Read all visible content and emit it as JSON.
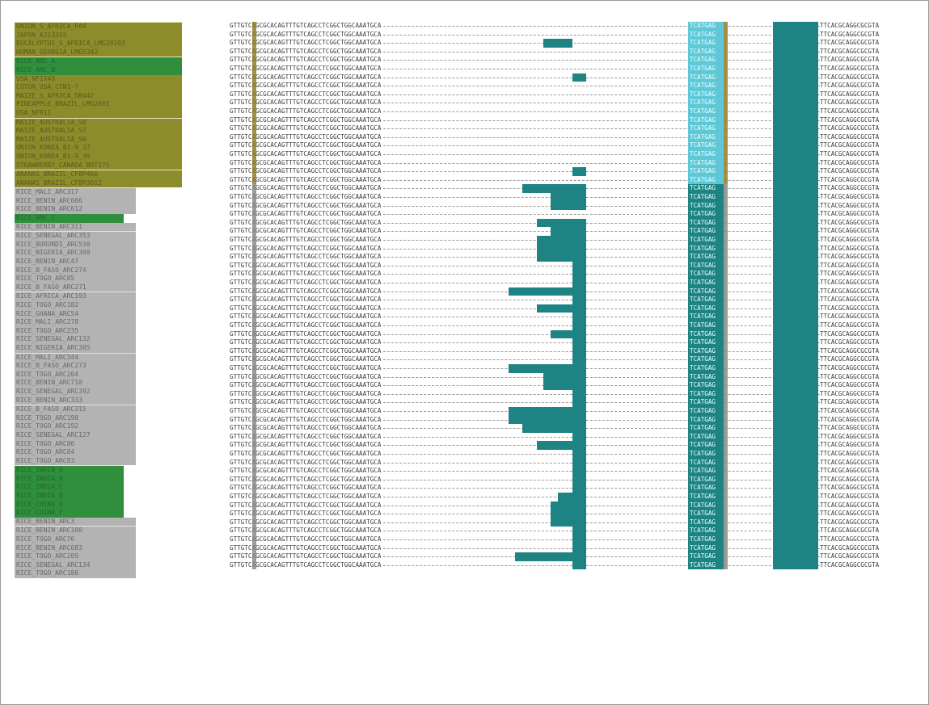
{
  "colors": {
    "olive": "#8d8c2a",
    "olive_dark": "#7a7820",
    "gray": "#b3b3b3",
    "green": "#2f8f3c",
    "teal": "#1d8383",
    "teal_light": "#5fc8d6",
    "mark_gold": "#8f7d2a"
  },
  "left_seq": "GTTGTCAGCGCACAGTTTGTCAGCCTCGGCTGGCAAATGCA",
  "right_seq": "TTCACGCAGGCGCGTA",
  "repeat_unit": "TCATGAG",
  "sequences": [
    {
      "name": "ONION_S_AFRICA_PA4",
      "bg": "olive",
      "start": true
    },
    {
      "name": "JAPON_AJ13355",
      "bg": "olive"
    },
    {
      "name": "EUCALYPTUS_S_AFRICA_LMG20103",
      "bg": "olive",
      "ins": [
        12,
        15
      ]
    },
    {
      "name": "HUMAN_GEORGIA_LMG5342",
      "bg": "olive"
    },
    {
      "name": "RICE_ARC_A",
      "bg": "green",
      "start": true
    },
    {
      "name": "RICE_ARC_B",
      "bg": "green"
    },
    {
      "name": "USA_NFIX48",
      "bg": "olive",
      "ins": [
        16,
        17
      ]
    },
    {
      "name": "COTON_USA_CFN1-7",
      "bg": "olive"
    },
    {
      "name": "MAIZE_S_AFRICA_DB442",
      "bg": "olive"
    },
    {
      "name": "PINEAPPLE_BRAZIL_LMG2665",
      "bg": "olive"
    },
    {
      "name": "USA_NFR11",
      "bg": "olive"
    },
    {
      "name": "MAIZE_AUSTRALIA_S8",
      "bg": "olive",
      "start": true
    },
    {
      "name": "MAIZE_AUSTRALIA_S7",
      "bg": "olive"
    },
    {
      "name": "MAIZE_AUSTRALIA_S6",
      "bg": "olive"
    },
    {
      "name": "ONION_KOREA_B1-9_37",
      "bg": "olive"
    },
    {
      "name": "ONION_KOREA_B1-9_39",
      "bg": "olive"
    },
    {
      "name": "STRAWBERRY_CANADA_BRT175",
      "bg": "olive"
    },
    {
      "name": "ANANAS_BRAZIL_CFBP466",
      "bg": "olive",
      "start": true,
      "ins": [
        16,
        17
      ]
    },
    {
      "name": "ANANAS_BRAZIL_CFBP3612",
      "bg": "olive"
    },
    {
      "name": "RICE_MALI_ARC317",
      "bg": "gray",
      "start": true,
      "ins": [
        9,
        17
      ]
    },
    {
      "name": "RICE_BENIN_ARC666",
      "bg": "gray",
      "ins": [
        13,
        17
      ]
    },
    {
      "name": "RICE_BENIN_ARC612",
      "bg": "gray",
      "ins": [
        13,
        17
      ]
    },
    {
      "name": "RICE_ARC_C",
      "bg": "green"
    },
    {
      "name": "RICE_BENIN_ARC311",
      "bg": "gray",
      "ins": [
        11,
        17
      ]
    },
    {
      "name": "RICE_SENEGAL_ARC353",
      "bg": "gray",
      "start": true,
      "ins": [
        13,
        17
      ]
    },
    {
      "name": "RICE_BURUNDI_ARC538",
      "bg": "gray",
      "ins": [
        11,
        17
      ]
    },
    {
      "name": "RICE_NIGERIA_ARC308",
      "bg": "gray",
      "ins": [
        11,
        17
      ]
    },
    {
      "name": "RICE_BENIN_ARC47",
      "bg": "gray",
      "ins": [
        11,
        17
      ]
    },
    {
      "name": "RICE_B_FASO_ARC274",
      "bg": "gray",
      "ins": [
        16,
        17
      ]
    },
    {
      "name": "RICE_TOGO_ARC85",
      "bg": "gray",
      "ins": [
        16,
        17
      ]
    },
    {
      "name": "RICE_B_FASO_ARC271",
      "bg": "gray",
      "ins": [
        16,
        17
      ]
    },
    {
      "name": "RICE_AFRICA_ARC193",
      "bg": "gray",
      "start": true,
      "ins": [
        7,
        17
      ]
    },
    {
      "name": "RICE_TOGO_ARC182",
      "bg": "gray",
      "ins": [
        16,
        17
      ]
    },
    {
      "name": "RICE_GHANA_ARC54",
      "bg": "gray",
      "ins": [
        11,
        17
      ]
    },
    {
      "name": "RICE_MALI_ARC278",
      "bg": "gray",
      "ins": [
        16,
        17
      ]
    },
    {
      "name": "RICE_TOGO_ARC235",
      "bg": "gray",
      "ins": [
        16,
        17
      ]
    },
    {
      "name": "RICE_SENEGAL_ARC132",
      "bg": "gray",
      "ins": [
        13,
        17
      ]
    },
    {
      "name": "RICE_NIGERIA_ARC305",
      "bg": "gray",
      "ins": [
        16,
        17
      ]
    },
    {
      "name": "RICE_MALI_ARC344",
      "bg": "gray",
      "start": true,
      "ins": [
        16,
        17
      ]
    },
    {
      "name": "RICE_B_FASO_ARC273",
      "bg": "gray",
      "ins": [
        16,
        17
      ]
    },
    {
      "name": "RICE_TOGO_ARC204",
      "bg": "gray",
      "ins": [
        7,
        17
      ]
    },
    {
      "name": "RICE_BENIN_ARC710",
      "bg": "gray",
      "ins": [
        12,
        17
      ]
    },
    {
      "name": "RICE_SENEGAL_ARC392",
      "bg": "gray",
      "ins": [
        12,
        17
      ]
    },
    {
      "name": "RICE_BENIN_ARC333",
      "bg": "gray",
      "ins": [
        16,
        17
      ]
    },
    {
      "name": "RICE_B_FASO_ARC315",
      "bg": "gray",
      "start": true,
      "ins": [
        16,
        17
      ]
    },
    {
      "name": "RICE_TOGO_ARC198",
      "bg": "gray",
      "ins": [
        7,
        17
      ]
    },
    {
      "name": "RICE_TOGO_ARC192",
      "bg": "gray",
      "ins": [
        7,
        17
      ]
    },
    {
      "name": "RICE_SENEGAL_ARC127",
      "bg": "gray",
      "ins": [
        9,
        17
      ]
    },
    {
      "name": "RICE_TOGO_ARC86",
      "bg": "gray",
      "ins": [
        16,
        17
      ]
    },
    {
      "name": "RICE_TOGO_ARC84",
      "bg": "gray",
      "ins": [
        11,
        17
      ]
    },
    {
      "name": "RICE_TOGO_ARC83",
      "bg": "gray",
      "ins": [
        16,
        17
      ]
    },
    {
      "name": "RICE_INDIA_A",
      "bg": "green",
      "start": true,
      "ins": [
        16,
        17
      ]
    },
    {
      "name": "RICE_INDIA_B",
      "bg": "green",
      "ins": [
        16,
        17
      ]
    },
    {
      "name": "RICE_INDIA_C",
      "bg": "green",
      "ins": [
        16,
        17
      ]
    },
    {
      "name": "RICE_INDIA_D",
      "bg": "green",
      "ins": [
        16,
        17
      ]
    },
    {
      "name": "RICE_CHINA_E",
      "bg": "green",
      "ins": [
        14,
        17
      ]
    },
    {
      "name": "RICE_CHINA_F",
      "bg": "green",
      "ins": [
        13,
        17
      ]
    },
    {
      "name": "RICE_BENIN_ARC3",
      "bg": "gray",
      "ins": [
        13,
        17
      ]
    },
    {
      "name": "RICE_BENIN_ARC100",
      "bg": "gray",
      "start": true,
      "ins": [
        13,
        17
      ]
    },
    {
      "name": "RICE_TOGO_ARC76",
      "bg": "gray",
      "ins": [
        16,
        17
      ]
    },
    {
      "name": "RICE_BENIN_ARC683",
      "bg": "gray",
      "ins": [
        16,
        17
      ]
    },
    {
      "name": "RICE_TOGO_ARC209",
      "bg": "gray",
      "ins": [
        16,
        17
      ]
    },
    {
      "name": "RICE_SENEGAL_ARC134",
      "bg": "gray",
      "ins": [
        8,
        17
      ]
    },
    {
      "name": "RICE_TOGO_ARC186",
      "bg": "gray",
      "ins": [
        16,
        17
      ]
    }
  ]
}
